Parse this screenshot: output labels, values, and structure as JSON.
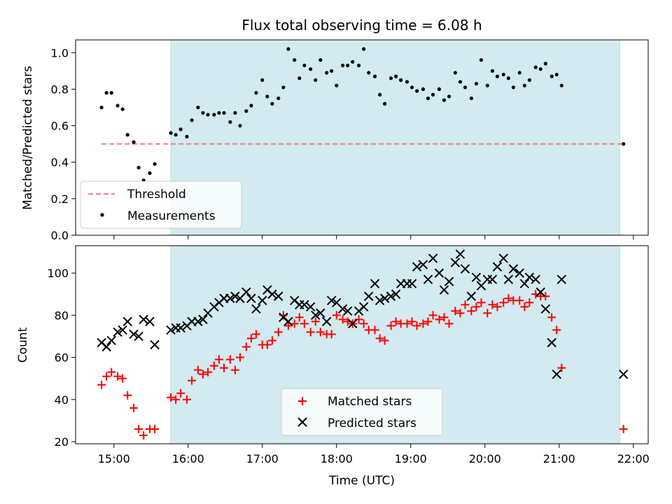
{
  "chart_data": [
    {
      "type": "scatter",
      "title": "Flux total observing time = 6.08 h",
      "ylabel": "Matched/Predicted stars",
      "xlabel": "",
      "xlim": [
        "14:29",
        "22:12"
      ],
      "ylim": [
        0.0,
        1.07
      ],
      "yticks": [
        "0.0",
        "0.2",
        "0.4",
        "0.6",
        "0.8",
        "1.0"
      ],
      "grid": false,
      "legend_position": "lower-left",
      "shaded_region": {
        "x_start": "15:46",
        "x_end": "21:49",
        "color": "#d3eaf0"
      },
      "threshold": {
        "name": "Threshold",
        "value": 0.5,
        "x_start": "14:50",
        "x_end": "21:52",
        "color": "#f08080",
        "style": "dashed"
      },
      "series": [
        {
          "name": "Measurements",
          "marker": "dot",
          "color": "#000000",
          "points": [
            [
              "14:50",
              0.7
            ],
            [
              "14:54",
              0.78
            ],
            [
              "14:58",
              0.78
            ],
            [
              "15:03",
              0.71
            ],
            [
              "15:07",
              0.69
            ],
            [
              "15:11",
              0.55
            ],
            [
              "15:16",
              0.51
            ],
            [
              "15:20",
              0.37
            ],
            [
              "15:24",
              0.3
            ],
            [
              "15:29",
              0.34
            ],
            [
              "15:33",
              0.39
            ],
            [
              "15:46",
              0.56
            ],
            [
              "15:50",
              0.55
            ],
            [
              "15:54",
              0.58
            ],
            [
              "15:59",
              0.54
            ],
            [
              "16:03",
              0.63
            ],
            [
              "16:08",
              0.7
            ],
            [
              "16:12",
              0.67
            ],
            [
              "16:16",
              0.66
            ],
            [
              "16:21",
              0.66
            ],
            [
              "16:25",
              0.67
            ],
            [
              "16:29",
              0.67
            ],
            [
              "16:34",
              0.62
            ],
            [
              "16:38",
              0.67
            ],
            [
              "16:42",
              0.6
            ],
            [
              "16:47",
              0.68
            ],
            [
              "16:51",
              0.71
            ],
            [
              "16:55",
              0.78
            ],
            [
              "17:00",
              0.85
            ],
            [
              "17:04",
              0.76
            ],
            [
              "17:08",
              0.72
            ],
            [
              "17:13",
              0.75
            ],
            [
              "17:17",
              0.81
            ],
            [
              "17:21",
              1.02
            ],
            [
              "17:26",
              0.96
            ],
            [
              "17:30",
              0.86
            ],
            [
              "17:34",
              0.93
            ],
            [
              "17:39",
              0.91
            ],
            [
              "17:43",
              0.85
            ],
            [
              "17:47",
              0.96
            ],
            [
              "17:52",
              0.89
            ],
            [
              "17:56",
              0.9
            ],
            [
              "18:00",
              0.82
            ],
            [
              "18:05",
              0.93
            ],
            [
              "18:09",
              0.93
            ],
            [
              "18:13",
              0.95
            ],
            [
              "18:18",
              0.93
            ],
            [
              "18:22",
              1.02
            ],
            [
              "18:26",
              0.89
            ],
            [
              "18:31",
              0.87
            ],
            [
              "18:35",
              0.77
            ],
            [
              "18:39",
              0.72
            ],
            [
              "18:44",
              0.86
            ],
            [
              "18:48",
              0.87
            ],
            [
              "18:52",
              0.85
            ],
            [
              "18:57",
              0.84
            ],
            [
              "19:01",
              0.81
            ],
            [
              "19:05",
              0.79
            ],
            [
              "19:10",
              0.8
            ],
            [
              "19:14",
              0.75
            ],
            [
              "19:18",
              0.77
            ],
            [
              "19:23",
              0.8
            ],
            [
              "19:27",
              0.74
            ],
            [
              "19:31",
              0.76
            ],
            [
              "19:36",
              0.89
            ],
            [
              "19:40",
              0.84
            ],
            [
              "19:44",
              0.81
            ],
            [
              "19:49",
              0.75
            ],
            [
              "19:53",
              0.83
            ],
            [
              "19:57",
              0.96
            ],
            [
              "20:02",
              0.82
            ],
            [
              "20:06",
              0.9
            ],
            [
              "20:10",
              0.87
            ],
            [
              "20:15",
              0.88
            ],
            [
              "20:19",
              0.86
            ],
            [
              "20:23",
              0.81
            ],
            [
              "20:28",
              0.89
            ],
            [
              "20:32",
              0.82
            ],
            [
              "20:36",
              0.85
            ],
            [
              "20:41",
              0.92
            ],
            [
              "20:45",
              0.91
            ],
            [
              "20:49",
              0.94
            ],
            [
              "20:54",
              0.87
            ],
            [
              "20:58",
              0.88
            ],
            [
              "21:02",
              0.82
            ],
            [
              "21:52",
              0.5
            ]
          ]
        }
      ]
    },
    {
      "type": "scatter",
      "title": "",
      "ylabel": "Count",
      "xlabel": "Time (UTC)",
      "xlim": [
        "14:29",
        "22:12"
      ],
      "ylim": [
        19,
        113
      ],
      "xticks": [
        "15:00",
        "16:00",
        "17:00",
        "18:00",
        "19:00",
        "20:00",
        "21:00",
        "22:00"
      ],
      "yticks": [
        "20",
        "40",
        "60",
        "80",
        "100"
      ],
      "grid": false,
      "legend_position": "lower-center",
      "shaded_region": {
        "x_start": "15:46",
        "x_end": "21:49",
        "color": "#d3eaf0"
      },
      "series": [
        {
          "name": "Matched stars",
          "marker": "plus",
          "color": "#ff0000",
          "points": [
            [
              "14:50",
              47
            ],
            [
              "14:54",
              51
            ],
            [
              "14:58",
              53
            ],
            [
              "15:03",
              51
            ],
            [
              "15:07",
              50
            ],
            [
              "15:11",
              42
            ],
            [
              "15:16",
              36
            ],
            [
              "15:20",
              26
            ],
            [
              "15:24",
              23
            ],
            [
              "15:29",
              26
            ],
            [
              "15:33",
              26
            ],
            [
              "15:46",
              41
            ],
            [
              "15:50",
              40
            ],
            [
              "15:54",
              43
            ],
            [
              "15:59",
              40
            ],
            [
              "16:03",
              49
            ],
            [
              "16:08",
              54
            ],
            [
              "16:12",
              52
            ],
            [
              "16:16",
              53
            ],
            [
              "16:21",
              56
            ],
            [
              "16:25",
              59
            ],
            [
              "16:29",
              55
            ],
            [
              "16:34",
              59
            ],
            [
              "16:38",
              54
            ],
            [
              "16:42",
              60
            ],
            [
              "16:47",
              65
            ],
            [
              "16:51",
              69
            ],
            [
              "16:55",
              71
            ],
            [
              "17:00",
              66
            ],
            [
              "17:04",
              66
            ],
            [
              "17:08",
              68
            ],
            [
              "17:13",
              72
            ],
            [
              "17:17",
              80
            ],
            [
              "17:21",
              75
            ],
            [
              "17:26",
              76
            ],
            [
              "17:30",
              79
            ],
            [
              "17:34",
              76
            ],
            [
              "17:39",
              72
            ],
            [
              "17:43",
              77
            ],
            [
              "17:47",
              72
            ],
            [
              "17:52",
              71
            ],
            [
              "17:56",
              71
            ],
            [
              "18:00",
              80
            ],
            [
              "18:05",
              78
            ],
            [
              "18:09",
              77
            ],
            [
              "18:13",
              76
            ],
            [
              "18:18",
              78
            ],
            [
              "18:22",
              76
            ],
            [
              "18:26",
              73
            ],
            [
              "18:31",
              73
            ],
            [
              "18:35",
              69
            ],
            [
              "18:39",
              68
            ],
            [
              "18:44",
              75
            ],
            [
              "18:48",
              77
            ],
            [
              "18:52",
              76
            ],
            [
              "18:57",
              76
            ],
            [
              "19:01",
              77
            ],
            [
              "19:05",
              75
            ],
            [
              "19:10",
              76
            ],
            [
              "19:14",
              77
            ],
            [
              "19:18",
              80
            ],
            [
              "19:23",
              78
            ],
            [
              "19:27",
              79
            ],
            [
              "19:31",
              76
            ],
            [
              "19:36",
              82
            ],
            [
              "19:40",
              81
            ],
            [
              "19:44",
              85
            ],
            [
              "19:49",
              82
            ],
            [
              "19:53",
              84
            ],
            [
              "19:57",
              86
            ],
            [
              "20:02",
              81
            ],
            [
              "20:06",
              85
            ],
            [
              "20:10",
              84
            ],
            [
              "20:15",
              86
            ],
            [
              "20:19",
              88
            ],
            [
              "20:23",
              87
            ],
            [
              "20:28",
              87
            ],
            [
              "20:32",
              84
            ],
            [
              "20:36",
              86
            ],
            [
              "20:41",
              90
            ],
            [
              "20:45",
              89
            ],
            [
              "20:49",
              89
            ],
            [
              "20:54",
              79
            ],
            [
              "20:58",
              73
            ],
            [
              "21:02",
              55
            ],
            [
              "21:52",
              26
            ]
          ]
        },
        {
          "name": "Predicted stars",
          "marker": "x",
          "color": "#000000",
          "points": [
            [
              "14:50",
              67
            ],
            [
              "14:54",
              65
            ],
            [
              "14:58",
              68
            ],
            [
              "15:03",
              72
            ],
            [
              "15:07",
              73
            ],
            [
              "15:11",
              77
            ],
            [
              "15:16",
              71
            ],
            [
              "15:20",
              70
            ],
            [
              "15:24",
              78
            ],
            [
              "15:29",
              77
            ],
            [
              "15:33",
              66
            ],
            [
              "15:46",
              73
            ],
            [
              "15:50",
              74
            ],
            [
              "15:54",
              74
            ],
            [
              "15:59",
              75
            ],
            [
              "16:03",
              77
            ],
            [
              "16:08",
              77
            ],
            [
              "16:12",
              78
            ],
            [
              "16:16",
              81
            ],
            [
              "16:21",
              84
            ],
            [
              "16:25",
              86
            ],
            [
              "16:29",
              88
            ],
            [
              "16:34",
              88
            ],
            [
              "16:38",
              89
            ],
            [
              "16:42",
              88
            ],
            [
              "16:47",
              91
            ],
            [
              "16:51",
              88
            ],
            [
              "16:55",
              83
            ],
            [
              "17:00",
              87
            ],
            [
              "17:04",
              92
            ],
            [
              "17:08",
              90
            ],
            [
              "17:13",
              89
            ],
            [
              "17:17",
              79
            ],
            [
              "17:21",
              77
            ],
            [
              "17:26",
              87
            ],
            [
              "17:30",
              85
            ],
            [
              "17:34",
              85
            ],
            [
              "17:39",
              84
            ],
            [
              "17:43",
              80
            ],
            [
              "17:47",
              81
            ],
            [
              "17:52",
              77
            ],
            [
              "17:56",
              87
            ],
            [
              "18:00",
              86
            ],
            [
              "18:05",
              83
            ],
            [
              "18:09",
              82
            ],
            [
              "18:13",
              76
            ],
            [
              "18:18",
              82
            ],
            [
              "18:22",
              84
            ],
            [
              "18:26",
              89
            ],
            [
              "18:31",
              95
            ],
            [
              "18:35",
              87
            ],
            [
              "18:39",
              88
            ],
            [
              "18:44",
              89
            ],
            [
              "18:48",
              90
            ],
            [
              "18:52",
              95
            ],
            [
              "18:57",
              95
            ],
            [
              "19:01",
              95
            ],
            [
              "19:05",
              103
            ],
            [
              "19:10",
              104
            ],
            [
              "19:14",
              97
            ],
            [
              "19:18",
              107
            ],
            [
              "19:23",
              100
            ],
            [
              "19:27",
              92
            ],
            [
              "19:31",
              96
            ],
            [
              "19:36",
              105
            ],
            [
              "19:40",
              109
            ],
            [
              "19:44",
              102
            ],
            [
              "19:49",
              89
            ],
            [
              "19:53",
              98
            ],
            [
              "19:57",
              94
            ],
            [
              "20:02",
              97
            ],
            [
              "20:06",
              97
            ],
            [
              "20:10",
              103
            ],
            [
              "20:15",
              107
            ],
            [
              "20:19",
              97
            ],
            [
              "20:23",
              102
            ],
            [
              "20:28",
              100
            ],
            [
              "20:32",
              95
            ],
            [
              "20:36",
              98
            ],
            [
              "20:41",
              97
            ],
            [
              "20:45",
              91
            ],
            [
              "20:49",
              83
            ],
            [
              "20:54",
              67
            ],
            [
              "20:58",
              52
            ],
            [
              "21:02",
              97
            ],
            [
              "21:52",
              52
            ]
          ]
        }
      ]
    }
  ]
}
